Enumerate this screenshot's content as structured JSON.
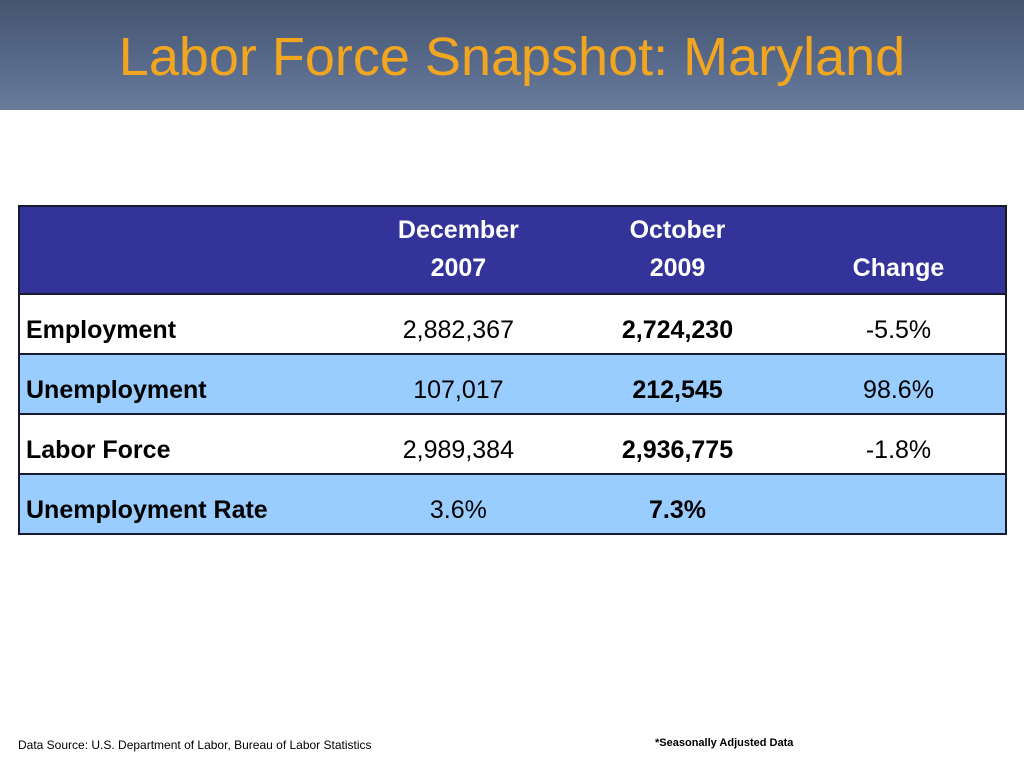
{
  "slide": {
    "title": "Labor Force Snapshot: Maryland"
  },
  "table": {
    "headers": {
      "label": "",
      "col1_line1": "December",
      "col1_line2": "2007",
      "col2_line1": "October",
      "col2_line2": "2009",
      "col3": "Change"
    },
    "rows": [
      {
        "label": "Employment",
        "dec2007": "2,882,367",
        "oct2009": "2,724,230",
        "change": "-5.5%"
      },
      {
        "label": "Unemployment",
        "dec2007": "107,017",
        "oct2009": "212,545",
        "change": "98.6%"
      },
      {
        "label": "Labor Force",
        "dec2007": "2,989,384",
        "oct2009": "2,936,775",
        "change": "-1.8%"
      },
      {
        "label": "Unemployment Rate",
        "dec2007": "3.6%",
        "oct2009": "7.3%",
        "change": ""
      }
    ]
  },
  "footer": {
    "source": "Data Source: U.S. Department of Labor, Bureau of Labor Statistics",
    "note": "*Seasonally Adjusted Data"
  },
  "colors": {
    "title_text": "#f2a51f",
    "title_bar": "#57698a",
    "header_background": "#333399",
    "alternate_row": "#99ccff"
  }
}
